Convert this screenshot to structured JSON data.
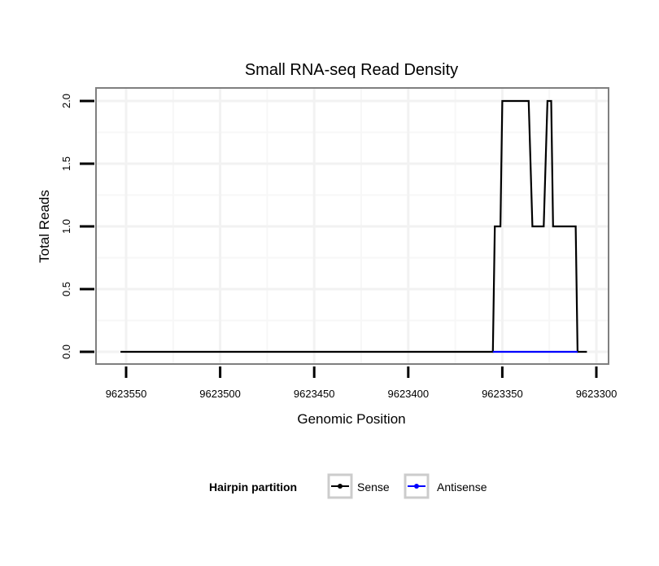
{
  "chart_data": {
    "type": "line",
    "title": "Small RNA-seq Read Density",
    "xlabel": "Genomic Position",
    "ylabel": "Total Reads",
    "xlim": [
      9623562,
      9623292
    ],
    "x_reversed": true,
    "ylim": [
      -0.1,
      2.1
    ],
    "xticks": [
      9623550,
      9623500,
      9623450,
      9623400,
      9623350,
      9623300
    ],
    "xtick_labels": [
      "9623550",
      "9623500",
      "9623450",
      "9623400",
      "9623350",
      "9623300"
    ],
    "yticks": [
      0,
      0.5,
      1,
      1.5,
      2
    ],
    "ytick_labels": [
      "0.0",
      "0.5",
      "1.0",
      "1.5",
      "2.0"
    ],
    "grid": true,
    "legend": {
      "title": "Hairpin partition",
      "placement": "bottom"
    },
    "series": [
      {
        "name": "Sense",
        "color": "#000000",
        "x": [
          9623553,
          9623355,
          9623354,
          9623351,
          9623350,
          9623336,
          9623334,
          9623328,
          9623326,
          9623324,
          9623323,
          9623311,
          9623310,
          9623305
        ],
        "y": [
          0,
          0,
          1,
          1,
          2,
          2,
          1,
          1,
          2,
          2,
          1,
          1,
          0,
          0
        ]
      },
      {
        "name": "Antisense",
        "color": "#0000ff",
        "x": [
          9623355,
          9623310
        ],
        "y": [
          0,
          0
        ]
      }
    ]
  }
}
